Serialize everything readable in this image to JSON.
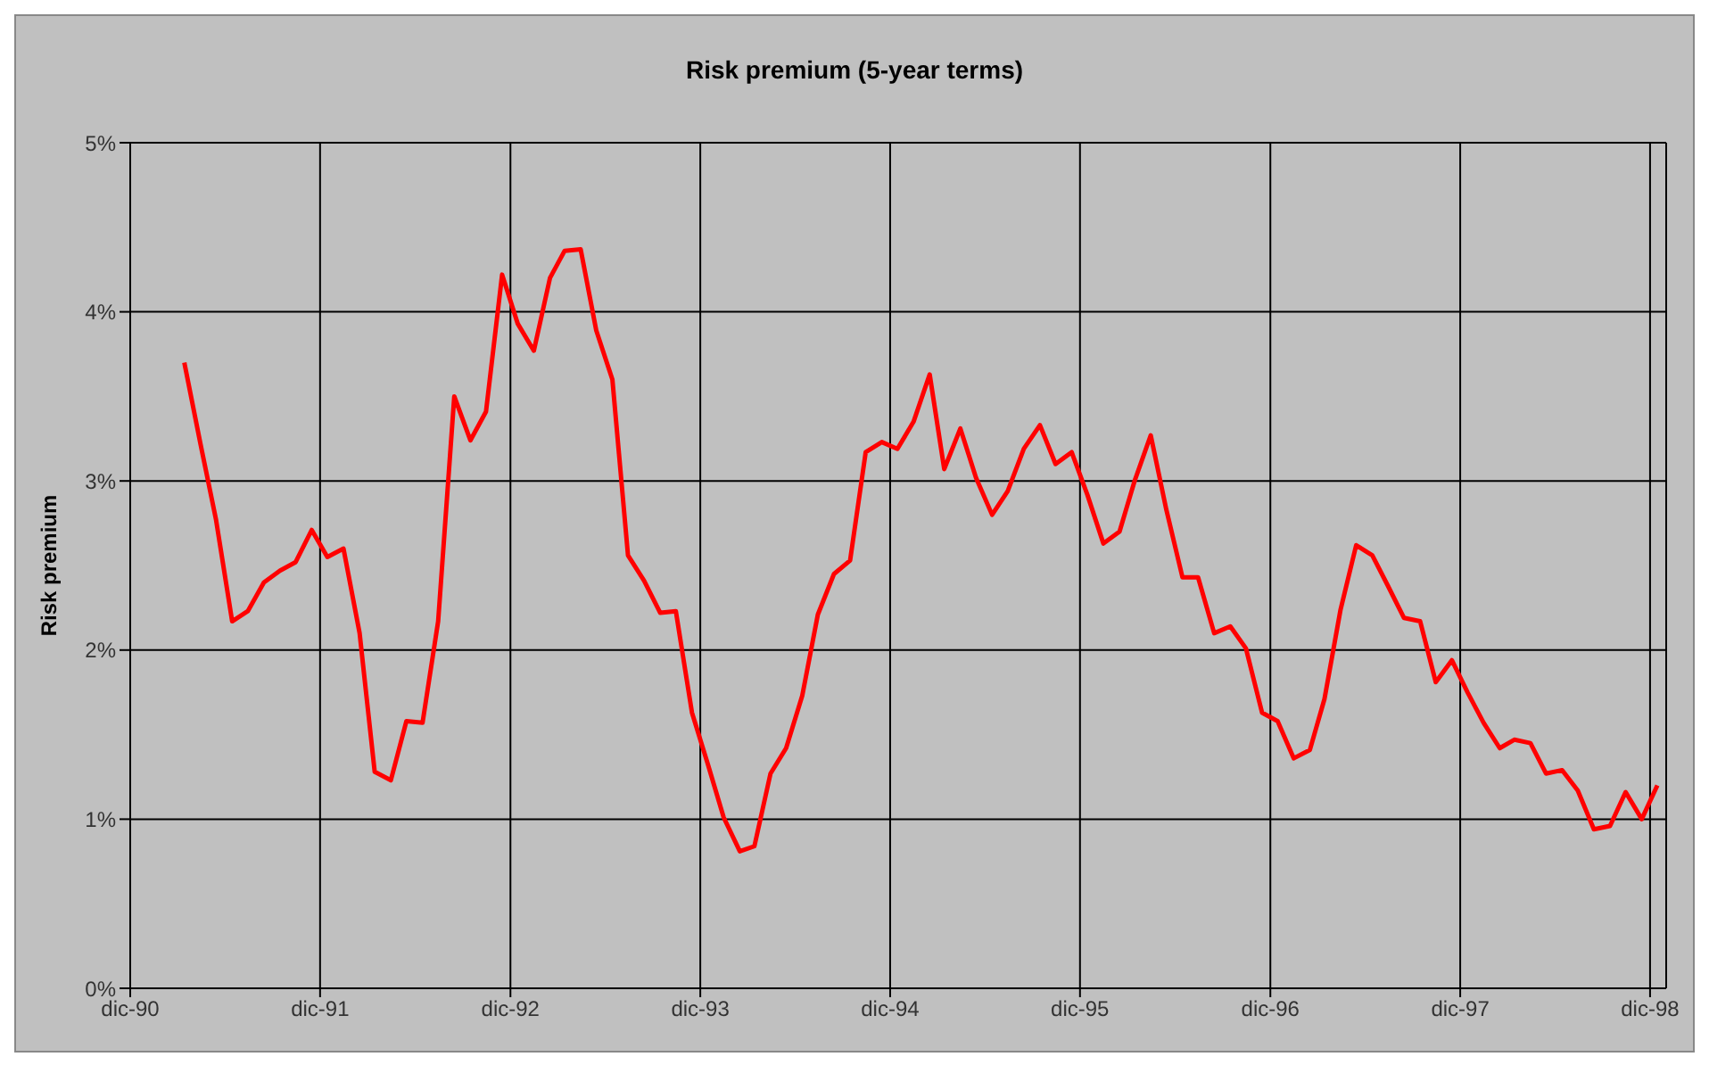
{
  "chart_data": {
    "type": "line",
    "title": "Risk premium (5-year terms)",
    "ylabel": "Risk premium",
    "x": [
      "1991-03-15",
      "1991-04-15",
      "1991-05-15",
      "1991-06-15",
      "1991-07-15",
      "1991-08-15",
      "1991-09-15",
      "1991-10-15",
      "1991-11-15",
      "1991-12-15",
      "1992-01-15",
      "1992-02-15",
      "1992-03-15",
      "1992-04-15",
      "1992-05-15",
      "1992-06-15",
      "1992-07-15",
      "1992-08-15",
      "1992-09-15",
      "1992-10-15",
      "1992-11-15",
      "1992-12-15",
      "1993-01-15",
      "1993-02-15",
      "1993-03-15",
      "1993-04-15",
      "1993-05-15",
      "1993-06-15",
      "1993-07-15",
      "1993-08-15",
      "1993-09-15",
      "1993-10-15",
      "1993-11-15",
      "1993-12-15",
      "1994-01-15",
      "1994-02-15",
      "1994-03-15",
      "1994-04-15",
      "1994-05-15",
      "1994-06-15",
      "1994-07-15",
      "1994-08-15",
      "1994-09-15",
      "1994-10-15",
      "1994-11-15",
      "1994-12-15",
      "1995-01-15",
      "1995-02-15",
      "1995-03-15",
      "1995-04-15",
      "1995-05-15",
      "1995-06-15",
      "1995-07-15",
      "1995-08-15",
      "1995-09-15",
      "1995-10-15",
      "1995-11-15",
      "1995-12-15",
      "1996-01-15",
      "1996-02-15",
      "1996-03-15",
      "1996-04-15",
      "1996-05-15",
      "1996-06-15",
      "1996-07-15",
      "1996-08-15",
      "1996-09-15",
      "1996-10-15",
      "1996-11-15",
      "1996-12-15",
      "1997-01-15",
      "1997-02-15",
      "1997-03-15",
      "1997-04-15",
      "1997-05-15",
      "1997-06-15",
      "1997-07-15",
      "1997-08-15",
      "1997-09-15",
      "1997-10-15",
      "1997-11-15",
      "1997-12-15",
      "1998-01-15",
      "1998-02-15",
      "1998-03-15",
      "1998-04-15",
      "1998-05-15",
      "1998-06-15",
      "1998-07-15",
      "1998-08-15",
      "1998-09-15",
      "1998-10-15",
      "1998-11-15",
      "1998-12-15"
    ],
    "series": [
      {
        "color": "#ff0000",
        "values": [
          3.7,
          3.22,
          2.77,
          2.17,
          2.23,
          2.4,
          2.47,
          2.52,
          2.71,
          2.55,
          2.6,
          2.1,
          1.28,
          1.23,
          1.58,
          1.57,
          2.17,
          3.5,
          3.24,
          3.41,
          4.22,
          3.93,
          3.77,
          4.2,
          4.36,
          4.37,
          3.89,
          3.6,
          2.56,
          2.41,
          2.22,
          2.23,
          1.63,
          1.33,
          1.01,
          0.81,
          0.84,
          1.27,
          1.42,
          1.73,
          2.21,
          2.45,
          2.53,
          3.17,
          3.23,
          3.19,
          3.35,
          3.63,
          3.07,
          3.31,
          3.02,
          2.8,
          2.94,
          3.19,
          3.33,
          3.1,
          3.17,
          2.92,
          2.63,
          2.7,
          3.0,
          3.27,
          2.83,
          2.43,
          2.43,
          2.1,
          2.14,
          2.01,
          1.63,
          1.58,
          1.36,
          1.41,
          1.71,
          2.24,
          2.62,
          2.56,
          2.38,
          2.19,
          2.17,
          1.81,
          1.94,
          1.75,
          1.57,
          1.42,
          1.47,
          1.45,
          1.27,
          1.29,
          1.17,
          0.94,
          0.96,
          1.16,
          1.0,
          1.2
        ]
      }
    ],
    "xlim": [
      "1990-12-01",
      "1999-01-01"
    ],
    "xticks": [
      {
        "value": "1990-12-01",
        "label": "dic-90"
      },
      {
        "value": "1991-12-01",
        "label": "dic-91"
      },
      {
        "value": "1992-12-01",
        "label": "dic-92"
      },
      {
        "value": "1993-12-01",
        "label": "dic-93"
      },
      {
        "value": "1994-12-01",
        "label": "dic-94"
      },
      {
        "value": "1995-12-01",
        "label": "dic-95"
      },
      {
        "value": "1996-12-01",
        "label": "dic-96"
      },
      {
        "value": "1997-12-01",
        "label": "dic-97"
      },
      {
        "value": "1998-12-01",
        "label": "dic-98"
      }
    ],
    "ylim": [
      0,
      5
    ],
    "yticks": [
      {
        "value": 0,
        "label": "0%"
      },
      {
        "value": 1,
        "label": "1%"
      },
      {
        "value": 2,
        "label": "2%"
      },
      {
        "value": 3,
        "label": "3%"
      },
      {
        "value": 4,
        "label": "4%"
      },
      {
        "value": 5,
        "label": "5%"
      }
    ],
    "grid": true
  }
}
